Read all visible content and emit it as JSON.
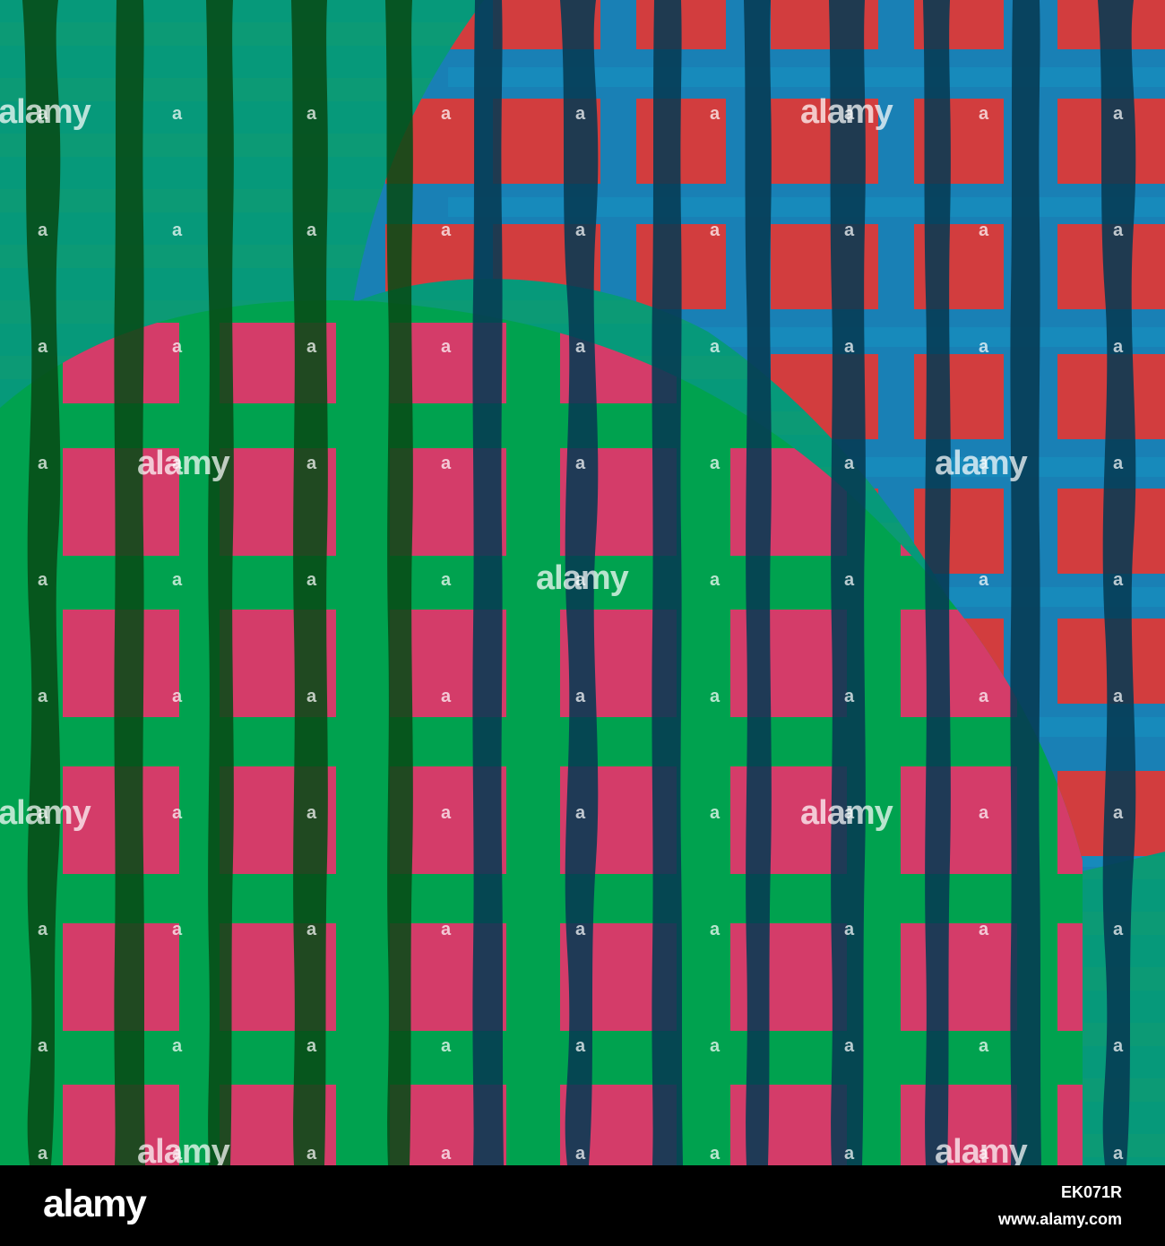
{
  "image": {
    "colors": {
      "teal": "#06997a",
      "blue": "#1980b5",
      "green": "#00a24f",
      "red": "#d63b3b",
      "pink": "#d83a6a",
      "dark_green": "#074b17",
      "dark_blue": "#063a53",
      "dark_red": "#5a1323"
    }
  },
  "watermark": {
    "text": "alamy",
    "small": "a"
  },
  "footer": {
    "logo": "alamy",
    "image_id": "EK071R",
    "url": "www.alamy.com"
  }
}
